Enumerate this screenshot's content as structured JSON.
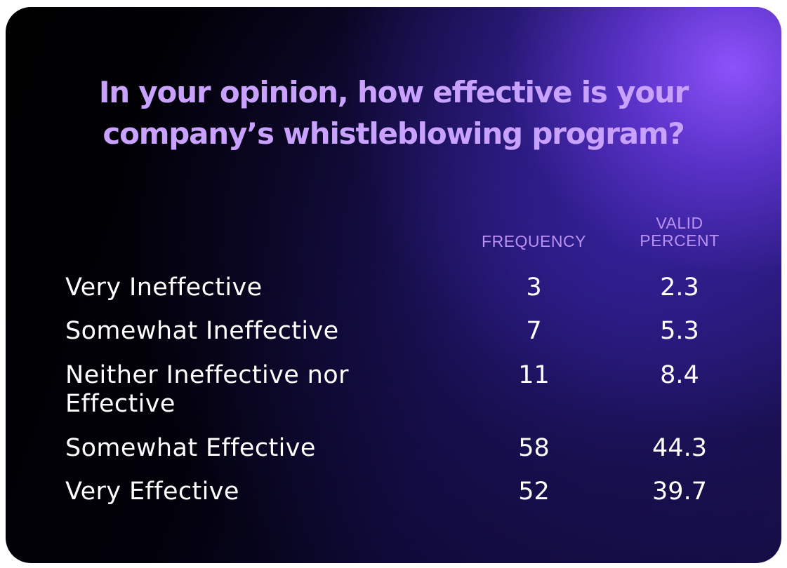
{
  "chart_data": {
    "type": "table",
    "title": "In your opinion, how effective is your company’s whistleblowing program?",
    "columns": [
      "FREQUENCY",
      "VALID PERCENT"
    ],
    "column_header_lines": {
      "frequency": [
        "FREQUENCY"
      ],
      "valid_percent": [
        "VALID",
        "PERCENT"
      ]
    },
    "rows": [
      {
        "label": "Very Ineffective",
        "frequency": "3",
        "valid_percent": "2.3"
      },
      {
        "label": "Somewhat Ineffective",
        "frequency": "7",
        "valid_percent": "5.3"
      },
      {
        "label": "Neither Ineffective nor Effective",
        "frequency": "11",
        "valid_percent": "8.4"
      },
      {
        "label": "Somewhat Effective",
        "frequency": "58",
        "valid_percent": "44.3"
      },
      {
        "label": "Very Effective",
        "frequency": "52",
        "valid_percent": "39.7"
      }
    ]
  },
  "colors": {
    "title": "#c9a1ff",
    "column_header": "#b991f2",
    "body_text": "#ffffff",
    "background_dark": "#000000",
    "background_accent": "#8d52fa"
  }
}
